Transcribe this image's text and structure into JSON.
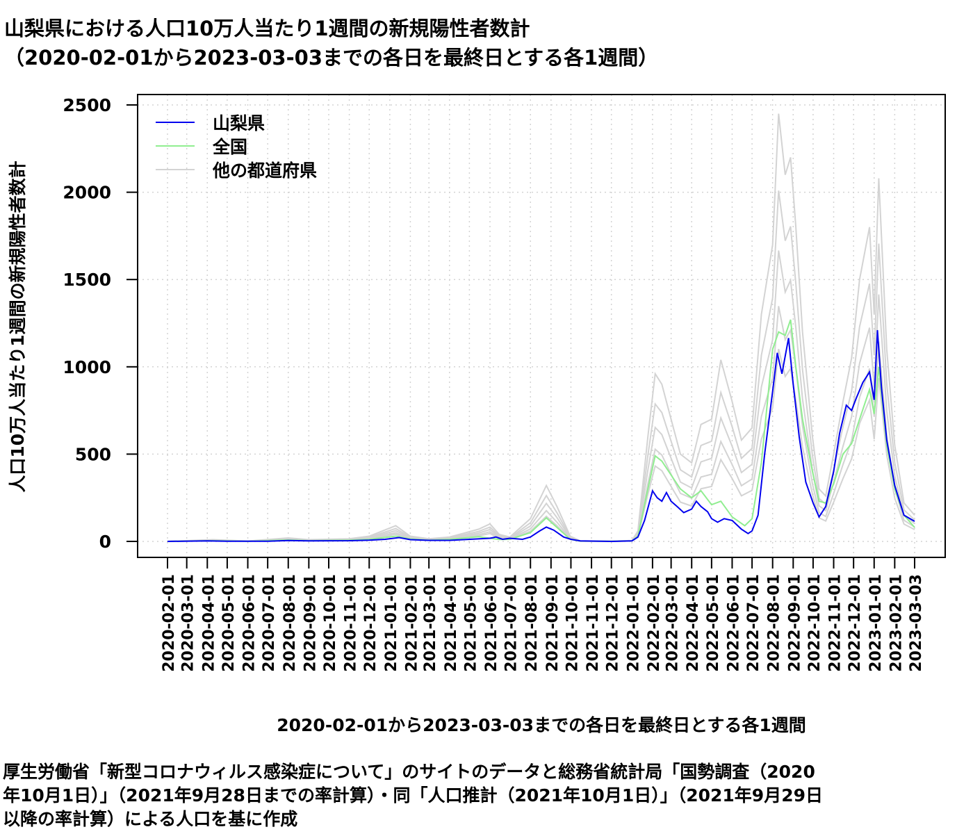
{
  "title_line1": "山梨県における人口10万人当たり1週間の新規陽性者数計",
  "title_line2": "（2020-02-01から2023-03-03までの各日を最終日とする各1週間）",
  "caption_lines": [
    "厚生労働省「新型コロナウィルス感染症について」のサイトのデータと総務省統計局「国勢調査（2020",
    "年10月1日）」（2021年9月28日までの率計算）・同「人口推計（2021年10月1日）」（2021年9月29日",
    "以降の率計算）による人口を基に作成"
  ],
  "chart_data": {
    "type": "line",
    "title": "山梨県における人口10万人当たり1週間の新規陽性者数計",
    "xlabel": "2020-02-01から2023-03-03までの各日を最終日とする各1週間",
    "ylabel": "人口10万人当たり1週間の新規陽性者数計",
    "xlim": [
      "2020-02-01",
      "2023-03-03"
    ],
    "ylim": [
      0,
      2500
    ],
    "yticks": [
      0,
      500,
      1000,
      1500,
      2000,
      2500
    ],
    "xticks": [
      "2020-02-01",
      "2020-03-01",
      "2020-04-01",
      "2020-05-01",
      "2020-06-01",
      "2020-07-01",
      "2020-08-01",
      "2020-09-01",
      "2020-10-01",
      "2020-11-01",
      "2020-12-01",
      "2021-01-01",
      "2021-02-01",
      "2021-03-01",
      "2021-04-01",
      "2021-05-01",
      "2021-06-01",
      "2021-07-01",
      "2021-08-01",
      "2021-09-01",
      "2021-10-01",
      "2021-11-01",
      "2021-12-01",
      "2022-01-01",
      "2022-02-01",
      "2022-03-01",
      "2022-04-01",
      "2022-05-01",
      "2022-06-01",
      "2022-07-01",
      "2022-08-01",
      "2022-09-01",
      "2022-10-01",
      "2022-11-01",
      "2022-12-01",
      "2023-01-01",
      "2023-02-01",
      "2023-03-03"
    ],
    "grid": true,
    "legend_position": "top-left",
    "series": [
      {
        "name": "山梨県",
        "color": "#0000ee",
        "points": [
          [
            "2020-02-01",
            0
          ],
          [
            "2020-04-01",
            3
          ],
          [
            "2020-05-01",
            1
          ],
          [
            "2020-07-01",
            1
          ],
          [
            "2020-08-01",
            5
          ],
          [
            "2020-09-01",
            3
          ],
          [
            "2020-11-01",
            4
          ],
          [
            "2020-12-01",
            7
          ],
          [
            "2020-12-25",
            12
          ],
          [
            "2021-01-15",
            22
          ],
          [
            "2021-02-01",
            10
          ],
          [
            "2021-03-01",
            6
          ],
          [
            "2021-04-01",
            6
          ],
          [
            "2021-05-01",
            12
          ],
          [
            "2021-06-01",
            18
          ],
          [
            "2021-06-10",
            25
          ],
          [
            "2021-06-20",
            12
          ],
          [
            "2021-07-01",
            18
          ],
          [
            "2021-07-20",
            12
          ],
          [
            "2021-08-01",
            25
          ],
          [
            "2021-08-15",
            60
          ],
          [
            "2021-08-25",
            82
          ],
          [
            "2021-09-05",
            65
          ],
          [
            "2021-09-20",
            25
          ],
          [
            "2021-10-01",
            12
          ],
          [
            "2021-10-15",
            3
          ],
          [
            "2021-12-01",
            0
          ],
          [
            "2022-01-01",
            3
          ],
          [
            "2022-01-10",
            25
          ],
          [
            "2022-01-20",
            120
          ],
          [
            "2022-02-01",
            290
          ],
          [
            "2022-02-08",
            250
          ],
          [
            "2022-02-15",
            230
          ],
          [
            "2022-02-22",
            280
          ],
          [
            "2022-03-01",
            230
          ],
          [
            "2022-03-10",
            200
          ],
          [
            "2022-03-20",
            165
          ],
          [
            "2022-04-01",
            185
          ],
          [
            "2022-04-08",
            230
          ],
          [
            "2022-04-15",
            200
          ],
          [
            "2022-04-25",
            170
          ],
          [
            "2022-05-01",
            130
          ],
          [
            "2022-05-10",
            110
          ],
          [
            "2022-05-20",
            130
          ],
          [
            "2022-06-01",
            120
          ],
          [
            "2022-06-15",
            70
          ],
          [
            "2022-06-25",
            45
          ],
          [
            "2022-07-01",
            60
          ],
          [
            "2022-07-10",
            150
          ],
          [
            "2022-07-20",
            500
          ],
          [
            "2022-08-01",
            860
          ],
          [
            "2022-08-08",
            1080
          ],
          [
            "2022-08-15",
            960
          ],
          [
            "2022-08-25",
            1165
          ],
          [
            "2022-09-01",
            900
          ],
          [
            "2022-09-10",
            600
          ],
          [
            "2022-09-20",
            340
          ],
          [
            "2022-10-01",
            220
          ],
          [
            "2022-10-10",
            140
          ],
          [
            "2022-10-20",
            200
          ],
          [
            "2022-11-01",
            400
          ],
          [
            "2022-11-10",
            620
          ],
          [
            "2022-11-20",
            780
          ],
          [
            "2022-11-28",
            750
          ],
          [
            "2022-12-05",
            820
          ],
          [
            "2022-12-15",
            910
          ],
          [
            "2022-12-25",
            970
          ],
          [
            "2023-01-01",
            810
          ],
          [
            "2023-01-06",
            1210
          ],
          [
            "2023-01-12",
            880
          ],
          [
            "2023-01-20",
            580
          ],
          [
            "2023-02-01",
            320
          ],
          [
            "2023-02-15",
            150
          ],
          [
            "2023-03-03",
            115
          ]
        ]
      },
      {
        "name": "全国",
        "color": "#90ee90",
        "points": [
          [
            "2020-02-01",
            0
          ],
          [
            "2020-04-10",
            4
          ],
          [
            "2020-06-01",
            1
          ],
          [
            "2020-08-01",
            8
          ],
          [
            "2020-09-01",
            4
          ],
          [
            "2020-11-01",
            7
          ],
          [
            "2020-12-01",
            12
          ],
          [
            "2021-01-10",
            30
          ],
          [
            "2021-02-01",
            14
          ],
          [
            "2021-03-01",
            7
          ],
          [
            "2021-04-01",
            12
          ],
          [
            "2021-05-15",
            27
          ],
          [
            "2021-06-15",
            11
          ],
          [
            "2021-07-01",
            12
          ],
          [
            "2021-08-01",
            50
          ],
          [
            "2021-08-25",
            135
          ],
          [
            "2021-09-10",
            80
          ],
          [
            "2021-09-30",
            12
          ],
          [
            "2021-10-15",
            2
          ],
          [
            "2021-12-01",
            1
          ],
          [
            "2022-01-01",
            3
          ],
          [
            "2022-01-10",
            30
          ],
          [
            "2022-01-25",
            300
          ],
          [
            "2022-02-05",
            490
          ],
          [
            "2022-02-15",
            460
          ],
          [
            "2022-03-01",
            380
          ],
          [
            "2022-03-15",
            300
          ],
          [
            "2022-04-01",
            250
          ],
          [
            "2022-04-15",
            290
          ],
          [
            "2022-05-01",
            210
          ],
          [
            "2022-05-15",
            230
          ],
          [
            "2022-06-01",
            140
          ],
          [
            "2022-06-20",
            90
          ],
          [
            "2022-07-01",
            130
          ],
          [
            "2022-07-15",
            450
          ],
          [
            "2022-08-01",
            1100
          ],
          [
            "2022-08-10",
            1200
          ],
          [
            "2022-08-20",
            1180
          ],
          [
            "2022-08-28",
            1270
          ],
          [
            "2022-09-05",
            1000
          ],
          [
            "2022-09-15",
            700
          ],
          [
            "2022-09-30",
            400
          ],
          [
            "2022-10-10",
            230
          ],
          [
            "2022-10-20",
            220
          ],
          [
            "2022-11-01",
            330
          ],
          [
            "2022-11-15",
            500
          ],
          [
            "2022-11-28",
            560
          ],
          [
            "2022-12-10",
            700
          ],
          [
            "2022-12-25",
            870
          ],
          [
            "2023-01-01",
            730
          ],
          [
            "2023-01-08",
            1000
          ],
          [
            "2023-01-20",
            550
          ],
          [
            "2023-02-01",
            300
          ],
          [
            "2023-02-15",
            150
          ],
          [
            "2023-03-03",
            80
          ]
        ]
      },
      {
        "name": "他の都道府県",
        "color": "#d3d3d3",
        "points": [
          [
            "2020-02-01",
            0
          ],
          [
            "2020-04-10",
            10
          ],
          [
            "2020-06-01",
            2
          ],
          [
            "2020-08-01",
            20
          ],
          [
            "2020-09-01",
            10
          ],
          [
            "2020-11-01",
            15
          ],
          [
            "2020-12-01",
            30
          ],
          [
            "2021-01-10",
            90
          ],
          [
            "2021-02-01",
            30
          ],
          [
            "2021-03-01",
            15
          ],
          [
            "2021-04-01",
            25
          ],
          [
            "2021-05-15",
            70
          ],
          [
            "2021-06-01",
            100
          ],
          [
            "2021-06-15",
            40
          ],
          [
            "2021-07-01",
            25
          ],
          [
            "2021-08-01",
            130
          ],
          [
            "2021-08-25",
            320
          ],
          [
            "2021-09-10",
            200
          ],
          [
            "2021-09-30",
            30
          ],
          [
            "2021-10-15",
            3
          ],
          [
            "2021-12-01",
            1
          ],
          [
            "2022-01-01",
            5
          ],
          [
            "2022-01-10",
            60
          ],
          [
            "2022-01-25",
            600
          ],
          [
            "2022-02-05",
            960
          ],
          [
            "2022-02-15",
            900
          ],
          [
            "2022-03-01",
            700
          ],
          [
            "2022-03-15",
            500
          ],
          [
            "2022-04-01",
            450
          ],
          [
            "2022-04-15",
            670
          ],
          [
            "2022-05-01",
            700
          ],
          [
            "2022-05-15",
            1040
          ],
          [
            "2022-06-01",
            800
          ],
          [
            "2022-06-15",
            580
          ],
          [
            "2022-07-01",
            650
          ],
          [
            "2022-07-15",
            1300
          ],
          [
            "2022-08-01",
            1700
          ],
          [
            "2022-08-10",
            2450
          ],
          [
            "2022-08-20",
            2100
          ],
          [
            "2022-08-28",
            2200
          ],
          [
            "2022-09-05",
            1800
          ],
          [
            "2022-09-15",
            1200
          ],
          [
            "2022-09-30",
            600
          ],
          [
            "2022-10-10",
            300
          ],
          [
            "2022-10-20",
            260
          ],
          [
            "2022-11-01",
            500
          ],
          [
            "2022-11-15",
            800
          ],
          [
            "2022-11-28",
            1050
          ],
          [
            "2022-12-10",
            1500
          ],
          [
            "2022-12-25",
            1800
          ],
          [
            "2023-01-01",
            1300
          ],
          [
            "2023-01-08",
            2080
          ],
          [
            "2023-01-20",
            1100
          ],
          [
            "2023-02-01",
            550
          ],
          [
            "2023-02-15",
            220
          ],
          [
            "2023-03-03",
            150
          ]
        ]
      }
    ]
  }
}
